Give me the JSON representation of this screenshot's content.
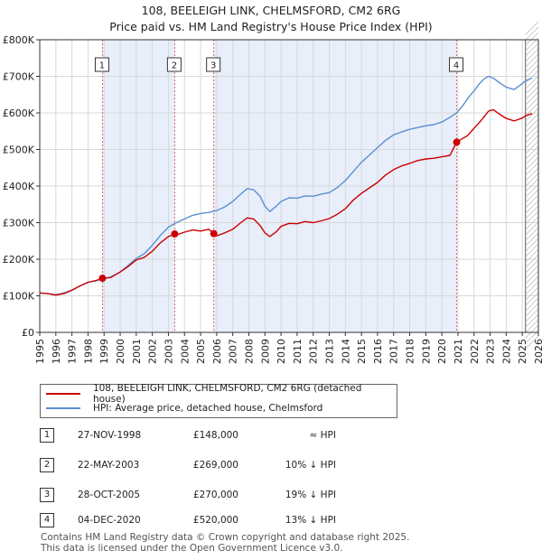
{
  "header": {
    "title_line1": "108, BEELEIGH LINK, CHELMSFORD, CM2 6RG",
    "title_line2": "Price paid vs. HM Land Registry's House Price Index (HPI)"
  },
  "colors": {
    "property_line": "#cc0000",
    "hpi_line": "#5b8fd0",
    "shade": "#e8eefa",
    "marker_line": "#e06666",
    "grid": "#d8d8d8"
  },
  "chart_data": {
    "type": "line",
    "title": "108, BEELEIGH LINK, CHELMSFORD, CM2 6RG — Price paid vs. HM Land Registry's House Price Index (HPI)",
    "xlim": [
      1995,
      2026
    ],
    "ylim": [
      0,
      800000
    ],
    "x_ticks": [
      "1995",
      "1996",
      "1997",
      "1998",
      "1999",
      "2000",
      "2001",
      "2002",
      "2003",
      "2004",
      "2005",
      "2006",
      "2007",
      "2008",
      "2009",
      "2010",
      "2011",
      "2012",
      "2013",
      "2014",
      "2015",
      "2016",
      "2017",
      "2018",
      "2019",
      "2020",
      "2021",
      "2022",
      "2023",
      "2024",
      "2025",
      "2026"
    ],
    "y_ticks": [
      {
        "value": 0,
        "label": "£0"
      },
      {
        "value": 100000,
        "label": "£100K"
      },
      {
        "value": 200000,
        "label": "£200K"
      },
      {
        "value": 300000,
        "label": "£300K"
      },
      {
        "value": 400000,
        "label": "£400K"
      },
      {
        "value": 500000,
        "label": "£500K"
      },
      {
        "value": 600000,
        "label": "£600K"
      },
      {
        "value": 700000,
        "label": "£700K"
      },
      {
        "value": 800000,
        "label": "£800K"
      }
    ],
    "shaded_ranges": [
      [
        1998.9,
        2003.39
      ],
      [
        2005.82,
        2020.92
      ]
    ],
    "forecast_start": 2025.2,
    "series": [
      {
        "name": "108, BEELEIGH LINK, CHELMSFORD, CM2 6RG (detached house)",
        "color": "#cc0000",
        "points": [
          [
            1995,
            108000
          ],
          [
            1995.5,
            106000
          ],
          [
            1996,
            102000
          ],
          [
            1996.5,
            106000
          ],
          [
            1997,
            115000
          ],
          [
            1997.5,
            127000
          ],
          [
            1998,
            137000
          ],
          [
            1998.5,
            142000
          ],
          [
            1998.9,
            148000
          ],
          [
            1999.4,
            150000
          ],
          [
            2000,
            165000
          ],
          [
            2000.5,
            180000
          ],
          [
            2001,
            198000
          ],
          [
            2001.5,
            205000
          ],
          [
            2002,
            222000
          ],
          [
            2002.5,
            245000
          ],
          [
            2003,
            262000
          ],
          [
            2003.39,
            269000
          ],
          [
            2003.6,
            268000
          ],
          [
            2004,
            274000
          ],
          [
            2004.5,
            280000
          ],
          [
            2005,
            277000
          ],
          [
            2005.5,
            282000
          ],
          [
            2005.82,
            270000
          ],
          [
            2006,
            264000
          ],
          [
            2006.5,
            272000
          ],
          [
            2007,
            282000
          ],
          [
            2007.5,
            300000
          ],
          [
            2007.9,
            313000
          ],
          [
            2008.3,
            310000
          ],
          [
            2008.7,
            292000
          ],
          [
            2009,
            272000
          ],
          [
            2009.3,
            262000
          ],
          [
            2009.7,
            275000
          ],
          [
            2010,
            290000
          ],
          [
            2010.5,
            298000
          ],
          [
            2011,
            297000
          ],
          [
            2011.5,
            303000
          ],
          [
            2012,
            300000
          ],
          [
            2012.5,
            305000
          ],
          [
            2013,
            311000
          ],
          [
            2013.5,
            323000
          ],
          [
            2014,
            338000
          ],
          [
            2014.5,
            362000
          ],
          [
            2015,
            380000
          ],
          [
            2015.5,
            395000
          ],
          [
            2016,
            410000
          ],
          [
            2016.5,
            430000
          ],
          [
            2017,
            445000
          ],
          [
            2017.5,
            455000
          ],
          [
            2018,
            462000
          ],
          [
            2018.5,
            470000
          ],
          [
            2019,
            474000
          ],
          [
            2019.5,
            476000
          ],
          [
            2020,
            480000
          ],
          [
            2020.5,
            484000
          ],
          [
            2020.92,
            520000
          ],
          [
            2021.2,
            528000
          ],
          [
            2021.6,
            538000
          ],
          [
            2022,
            558000
          ],
          [
            2022.3,
            572000
          ],
          [
            2022.6,
            588000
          ],
          [
            2022.9,
            605000
          ],
          [
            2023.2,
            609000
          ],
          [
            2023.6,
            596000
          ],
          [
            2024,
            585000
          ],
          [
            2024.5,
            578000
          ],
          [
            2025,
            586000
          ],
          [
            2025.2,
            592000
          ],
          [
            2025.6,
            598000
          ]
        ]
      },
      {
        "name": "HPI: Average price, detached house, Chelmsford",
        "color": "#5b8fd0",
        "points": [
          [
            1995,
            108000
          ],
          [
            1995.5,
            106000
          ],
          [
            1996,
            103000
          ],
          [
            1996.5,
            108000
          ],
          [
            1997,
            116000
          ],
          [
            1997.5,
            127000
          ],
          [
            1998,
            137000
          ],
          [
            1998.5,
            141000
          ],
          [
            1998.9,
            146000
          ],
          [
            1999.4,
            151000
          ],
          [
            2000,
            165000
          ],
          [
            2000.5,
            183000
          ],
          [
            2001,
            202000
          ],
          [
            2001.5,
            215000
          ],
          [
            2002,
            238000
          ],
          [
            2002.5,
            265000
          ],
          [
            2003,
            288000
          ],
          [
            2003.5,
            300000
          ],
          [
            2004,
            310000
          ],
          [
            2004.5,
            320000
          ],
          [
            2005,
            325000
          ],
          [
            2005.5,
            328000
          ],
          [
            2006,
            333000
          ],
          [
            2006.5,
            343000
          ],
          [
            2007,
            358000
          ],
          [
            2007.5,
            378000
          ],
          [
            2007.9,
            393000
          ],
          [
            2008.3,
            390000
          ],
          [
            2008.7,
            372000
          ],
          [
            2009,
            345000
          ],
          [
            2009.3,
            330000
          ],
          [
            2009.7,
            345000
          ],
          [
            2010,
            358000
          ],
          [
            2010.5,
            368000
          ],
          [
            2011,
            367000
          ],
          [
            2011.5,
            373000
          ],
          [
            2012,
            372000
          ],
          [
            2012.5,
            378000
          ],
          [
            2013,
            382000
          ],
          [
            2013.5,
            396000
          ],
          [
            2014,
            415000
          ],
          [
            2014.5,
            440000
          ],
          [
            2015,
            465000
          ],
          [
            2015.5,
            485000
          ],
          [
            2016,
            505000
          ],
          [
            2016.5,
            525000
          ],
          [
            2017,
            540000
          ],
          [
            2017.5,
            548000
          ],
          [
            2018,
            555000
          ],
          [
            2018.5,
            560000
          ],
          [
            2019,
            565000
          ],
          [
            2019.5,
            568000
          ],
          [
            2020,
            575000
          ],
          [
            2020.5,
            588000
          ],
          [
            2020.92,
            600000
          ],
          [
            2021.3,
            620000
          ],
          [
            2021.7,
            645000
          ],
          [
            2022,
            660000
          ],
          [
            2022.3,
            678000
          ],
          [
            2022.6,
            692000
          ],
          [
            2022.9,
            700000
          ],
          [
            2023.2,
            695000
          ],
          [
            2023.6,
            682000
          ],
          [
            2024,
            670000
          ],
          [
            2024.5,
            664000
          ],
          [
            2025,
            680000
          ],
          [
            2025.2,
            688000
          ],
          [
            2025.6,
            695000
          ]
        ]
      }
    ],
    "sales": [
      {
        "label": "1",
        "x": 1998.9,
        "y": 148000
      },
      {
        "label": "2",
        "x": 2003.39,
        "y": 269000
      },
      {
        "label": "3",
        "x": 2005.82,
        "y": 270000
      },
      {
        "label": "4",
        "x": 2020.92,
        "y": 520000
      }
    ]
  },
  "legend": {
    "property": "108, BEELEIGH LINK, CHELMSFORD, CM2 6RG (detached house)",
    "hpi": "HPI: Average price, detached house, Chelmsford"
  },
  "sales_table": [
    {
      "num": "1",
      "date": "27-NOV-1998",
      "price": "£148,000",
      "relation": "≈ HPI"
    },
    {
      "num": "2",
      "date": "22-MAY-2003",
      "price": "£269,000",
      "relation": "10% ↓ HPI"
    },
    {
      "num": "3",
      "date": "28-OCT-2005",
      "price": "£270,000",
      "relation": "19% ↓ HPI"
    },
    {
      "num": "4",
      "date": "04-DEC-2020",
      "price": "£520,000",
      "relation": "13% ↓ HPI"
    }
  ],
  "footer": {
    "line1": "Contains HM Land Registry data © Crown copyright and database right 2025.",
    "line2": "This data is licensed under the Open Government Licence v3.0."
  }
}
